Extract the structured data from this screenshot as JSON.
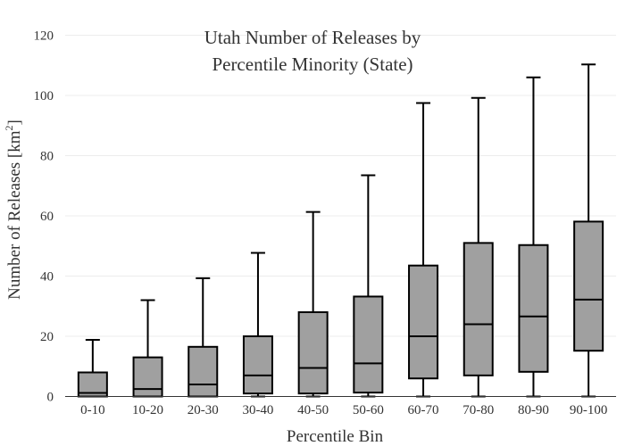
{
  "chart_data": {
    "type": "box",
    "title_line1": "Utah Number of Releases by",
    "title_line2": "Percentile Minority (State)",
    "xlabel": "Percentile Bin",
    "ylabel_main": "Number of Releases  [km",
    "ylabel_sup": "2",
    "ylabel_end": "]",
    "ylim": [
      0,
      120
    ],
    "yticks": [
      0,
      20,
      40,
      60,
      80,
      100,
      120
    ],
    "grid": true,
    "box_fill": "#a0a0a0",
    "box_stroke": "#000000",
    "categories": [
      "0-10",
      "10-20",
      "20-30",
      "30-40",
      "40-50",
      "50-60",
      "60-70",
      "70-80",
      "80-90",
      "90-100"
    ],
    "boxes": [
      {
        "category": "0-10",
        "min": 0,
        "q1": 0,
        "median": 1.2,
        "q3": 8,
        "max": 18.8
      },
      {
        "category": "10-20",
        "min": 0,
        "q1": 0,
        "median": 2.5,
        "q3": 13,
        "max": 32
      },
      {
        "category": "20-30",
        "min": 0,
        "q1": 0,
        "median": 4,
        "q3": 16.5,
        "max": 39.3
      },
      {
        "category": "30-40",
        "min": 0,
        "q1": 1,
        "median": 7,
        "q3": 20,
        "max": 47.7
      },
      {
        "category": "40-50",
        "min": 0,
        "q1": 1,
        "median": 9.5,
        "q3": 28,
        "max": 61.3
      },
      {
        "category": "50-60",
        "min": 0,
        "q1": 1.3,
        "median": 11,
        "q3": 33.2,
        "max": 73.5
      },
      {
        "category": "60-70",
        "min": 0,
        "q1": 6,
        "median": 20,
        "q3": 43.5,
        "max": 97.5
      },
      {
        "category": "70-80",
        "min": 0,
        "q1": 7,
        "median": 24,
        "q3": 51,
        "max": 99.2
      },
      {
        "category": "80-90",
        "min": 0,
        "q1": 8.2,
        "median": 26.6,
        "q3": 50.3,
        "max": 106
      },
      {
        "category": "90-100",
        "min": 0,
        "q1": 15.2,
        "median": 32.2,
        "q3": 58.1,
        "max": 110.3
      }
    ]
  }
}
